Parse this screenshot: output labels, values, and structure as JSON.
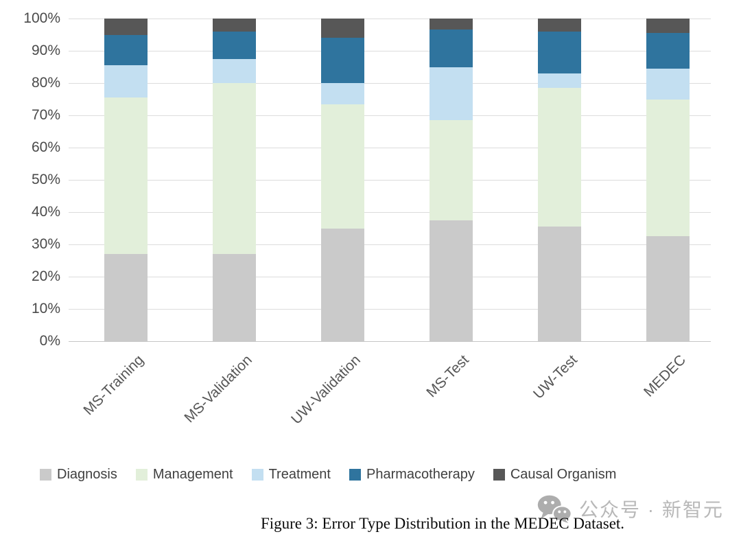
{
  "figure": {
    "caption": "Figure 3: Error Type Distribution in the MEDEC Dataset.",
    "watermark": {
      "icon": "wechat-icon",
      "text": "公众号 · 新智元",
      "color": "#b5b5b5"
    }
  },
  "chart_data": {
    "type": "bar",
    "stacked": true,
    "percent_stacked": true,
    "title": "",
    "xlabel": "",
    "ylabel": "",
    "ylim": [
      0,
      100
    ],
    "yticks": [
      {
        "label": "0%",
        "value": 0
      },
      {
        "label": "10%",
        "value": 10
      },
      {
        "label": "20%",
        "value": 20
      },
      {
        "label": "30%",
        "value": 30
      },
      {
        "label": "40%",
        "value": 40
      },
      {
        "label": "50%",
        "value": 50
      },
      {
        "label": "60%",
        "value": 60
      },
      {
        "label": "70%",
        "value": 70
      },
      {
        "label": "80%",
        "value": 80
      },
      {
        "label": "90%",
        "value": 90
      },
      {
        "label": "100%",
        "value": 100
      }
    ],
    "grid": "horizontal",
    "legend_position": "bottom",
    "categories": [
      "MS-Training",
      "MS-Validation",
      "UW-Validation",
      "MS-Test",
      "UW-Test",
      "MEDEC"
    ],
    "series": [
      {
        "name": "Diagnosis",
        "color": "#cacaca",
        "values": [
          27.0,
          27.0,
          35.0,
          37.5,
          35.5,
          32.5
        ]
      },
      {
        "name": "Management",
        "color": "#e2efda",
        "values": [
          48.5,
          53.0,
          38.5,
          31.0,
          43.0,
          42.5
        ]
      },
      {
        "name": "Treatment",
        "color": "#c3dff1",
        "values": [
          10.0,
          7.5,
          6.5,
          16.5,
          4.5,
          9.5
        ]
      },
      {
        "name": "Pharmacotherapy",
        "color": "#2f749e",
        "values": [
          9.5,
          8.5,
          14.0,
          11.5,
          13.0,
          11.0
        ]
      },
      {
        "name": "Causal Organism",
        "color": "#575757",
        "values": [
          5.0,
          4.0,
          6.0,
          3.5,
          4.0,
          4.5
        ]
      }
    ]
  }
}
